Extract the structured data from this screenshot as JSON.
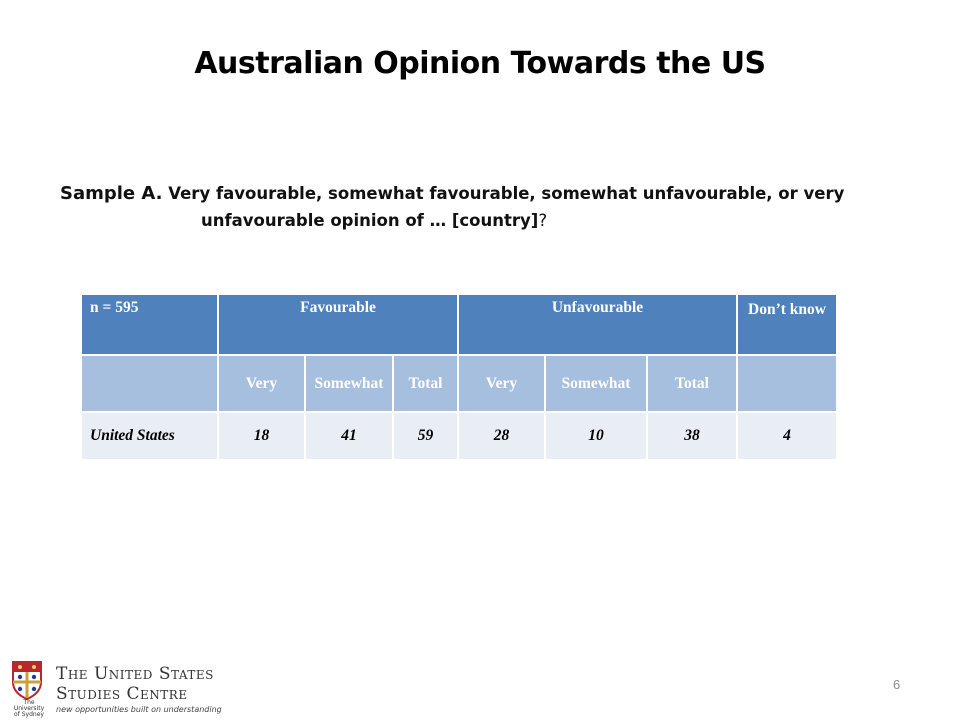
{
  "slide": {
    "title": "Australian Opinion Towards the US",
    "question": {
      "sample": "Sample A.",
      "line1": "Very favourable, somewhat favourable, somewhat unfavourable, or very",
      "line2": "unfavourable opinion of … [country]",
      "qmark": "?"
    },
    "page_number": "6"
  },
  "table": {
    "n_label": "n = 595",
    "groups": {
      "favourable": "Favourable",
      "unfavourable": "Unfavourable",
      "dont_know": "Don’t know"
    },
    "subheaders": [
      "Very",
      "Somewhat",
      "Total",
      "Very",
      "Somewhat",
      "Total"
    ],
    "rows": [
      {
        "country": "United States",
        "values": [
          "18",
          "41",
          "59",
          "28",
          "10",
          "38",
          "4"
        ]
      }
    ]
  },
  "footer": {
    "org_line1": "The United States",
    "org_line2": "Studies Centre",
    "tagline": "new opportunities built on understanding",
    "crest_caption": [
      "The",
      "University",
      "of Sydney"
    ]
  },
  "colors": {
    "header_dark": "#4f81bd",
    "header_light": "#a7bfde",
    "data_row": "#e9edf4"
  }
}
